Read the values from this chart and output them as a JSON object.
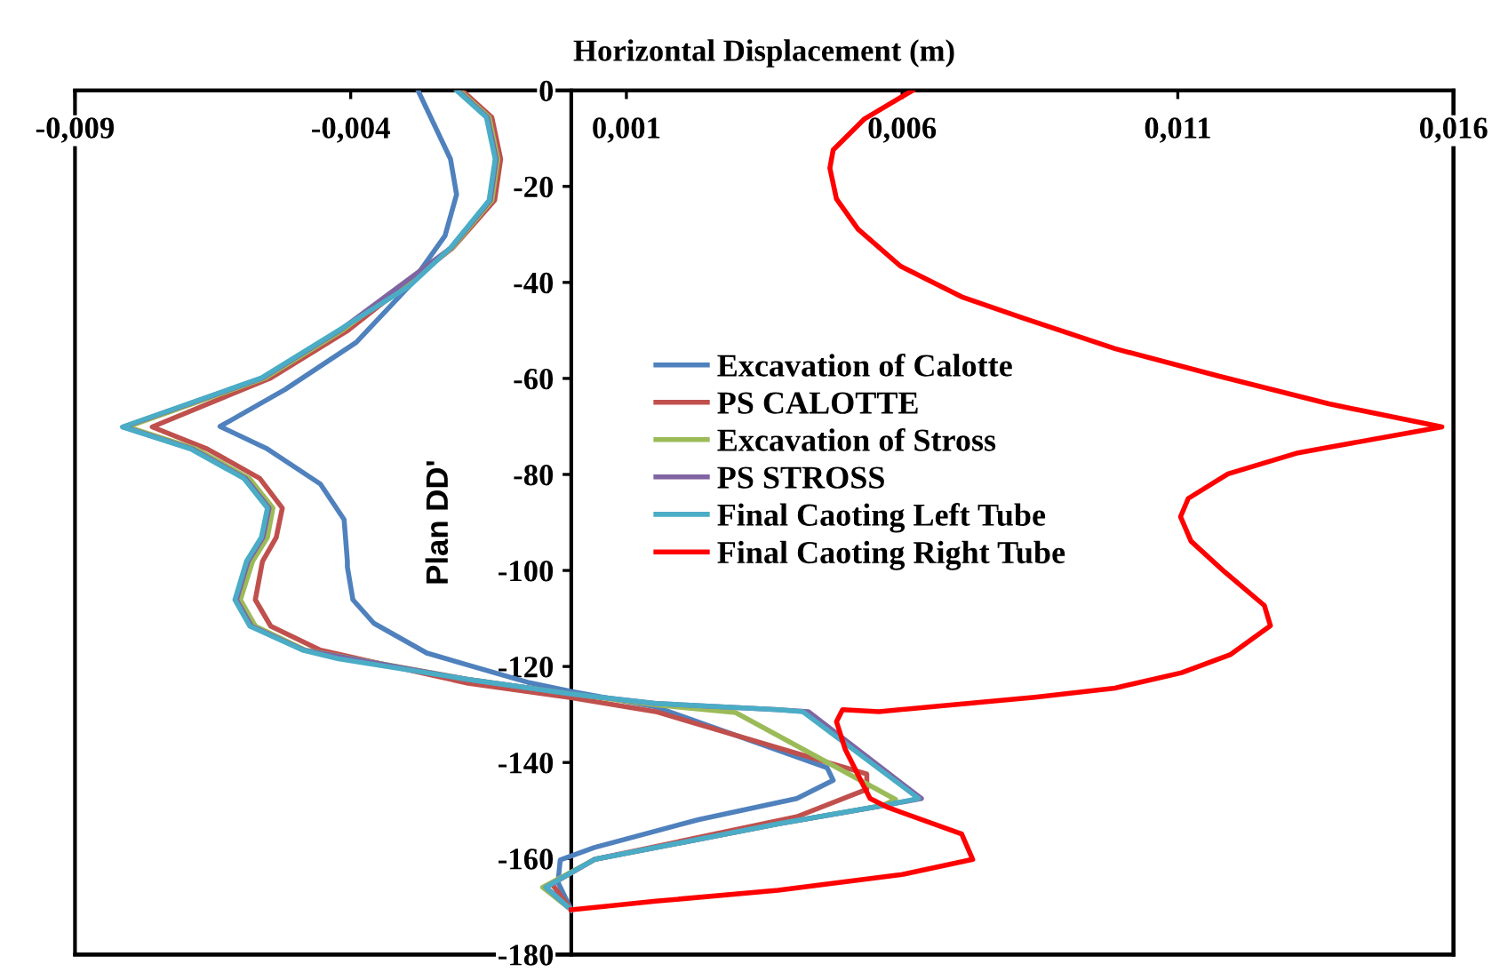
{
  "chart_data": {
    "type": "line",
    "xlabel": "Horizontal Displacement (m)",
    "ylabel": "Plan DD'",
    "xlim": [
      -0.009,
      0.016
    ],
    "xticks": [
      {
        "value": -0.009,
        "label": "-0,009"
      },
      {
        "value": -0.004,
        "label": "-0,004"
      },
      {
        "value": 0.001,
        "label": "0,001"
      },
      {
        "value": 0.006,
        "label": "0,006"
      },
      {
        "value": 0.011,
        "label": "0,011"
      },
      {
        "value": 0.016,
        "label": "0,016"
      }
    ],
    "ylim": [
      -180,
      0
    ],
    "yticks": [
      0,
      -20,
      -40,
      -60,
      -80,
      -100,
      -120,
      -140,
      -160,
      -180
    ],
    "grid": false,
    "legend": "center",
    "marker": "none",
    "line_style": "solid",
    "series": [
      {
        "name": "Excavation of Calotte",
        "color": "#4f81bd",
        "x": [
          -0.00278,
          -0.00219,
          -0.00208,
          -0.00229,
          -0.00294,
          -0.0039,
          -0.00519,
          -0.00637,
          -0.00551,
          -0.00455,
          -0.00412,
          -0.00406,
          -0.00406,
          -0.00396,
          -0.00358,
          -0.00262,
          -0.00079,
          0.0,
          0.00153,
          0.00464,
          0.00475,
          0.00409,
          0.00231,
          0.00042,
          -0.0002,
          -0.00024,
          0.0
        ],
        "values": [
          0,
          -14.3,
          -21.7,
          -30.3,
          -40.8,
          -52.5,
          -62.3,
          -70,
          -74.7,
          -82,
          -89.4,
          -98.1,
          -99.3,
          -106.1,
          -111,
          -117.2,
          -123.3,
          -125.2,
          -128.4,
          -141.1,
          -143.7,
          -147.5,
          -151.9,
          -157.7,
          -160.3,
          -165,
          -170.7
        ]
      },
      {
        "name": "PS CALOTTE",
        "color": "#c0504d",
        "x": [
          -0.00198,
          -0.00144,
          -0.00128,
          -0.00139,
          -0.00215,
          -0.00405,
          -0.00545,
          -0.0076,
          -0.0066,
          -0.00565,
          -0.00524,
          -0.00535,
          -0.0056,
          -0.00573,
          -0.00545,
          -0.00455,
          -0.00187,
          0.0,
          0.00153,
          0.00536,
          0.00536,
          0.00409,
          0.00042,
          -0.00035,
          0.0
        ],
        "values": [
          0,
          -5.6,
          -14.3,
          -22.9,
          -32.8,
          -50,
          -59.9,
          -70.1,
          -74.7,
          -80.8,
          -87,
          -93.1,
          -98.1,
          -106.1,
          -111.6,
          -116.6,
          -123.5,
          -126.5,
          -129.4,
          -142.4,
          -145.6,
          -151.3,
          -160.2,
          -165.3,
          -170.7
        ]
      },
      {
        "name": "Excavation of Stross",
        "color": "#9bbb59",
        "x": [
          -0.00203,
          -0.00149,
          -0.00133,
          -0.00144,
          -0.00216,
          -0.00415,
          -0.00555,
          -0.00805,
          -0.0068,
          -0.00584,
          -0.00541,
          -0.00551,
          -0.00578,
          -0.006,
          -0.00573,
          -0.00482,
          -0.00187,
          0.0,
          0.00153,
          0.00298,
          0.00588,
          0.00564,
          0.00375,
          0.00042,
          -0.00052,
          0.0
        ],
        "values": [
          0,
          -5.6,
          -14.3,
          -22.9,
          -32.8,
          -50,
          -59.9,
          -70.1,
          -74.7,
          -80.8,
          -87,
          -93.1,
          -98.1,
          -106.1,
          -111.6,
          -116.6,
          -122.7,
          -125.7,
          -128,
          -129.6,
          -147.7,
          -149,
          -152.8,
          -160.2,
          -166,
          -170.7
        ]
      },
      {
        "name": "PS STROSS",
        "color": "#8064a2",
        "x": [
          -0.00206,
          -0.00152,
          -0.00136,
          -0.00147,
          -0.00218,
          -0.0042,
          -0.0056,
          -0.00812,
          -0.00687,
          -0.00591,
          -0.00548,
          -0.00559,
          -0.00586,
          -0.00607,
          -0.0058,
          -0.00485,
          -0.00187,
          0.0,
          0.00153,
          0.00375,
          0.0043,
          0.00635,
          0.00566,
          0.00375,
          0.00042,
          -0.00046,
          0.0
        ],
        "values": [
          0,
          -5.6,
          -14.3,
          -22.9,
          -32.8,
          -50,
          -59.9,
          -70.1,
          -74.7,
          -80.8,
          -87,
          -93.1,
          -98.1,
          -106.1,
          -111.6,
          -116.6,
          -122.7,
          -125.7,
          -127.7,
          -129,
          -129.4,
          -147.5,
          -149,
          -152.8,
          -160.2,
          -166,
          -170.7
        ]
      },
      {
        "name": "Final Caoting Left Tube",
        "color": "#4bacc6",
        "x": [
          -0.00208,
          -0.00154,
          -0.00138,
          -0.00149,
          -0.00219,
          -0.00294,
          -0.00422,
          -0.00562,
          -0.00814,
          -0.0069,
          -0.00594,
          -0.00551,
          -0.00562,
          -0.00589,
          -0.0061,
          -0.00583,
          -0.00487,
          -0.00422,
          -0.00187,
          0.0,
          0.00153,
          0.00375,
          0.0042,
          0.0063,
          0.00564,
          0.00375,
          0.00042,
          -0.00046,
          0.0
        ],
        "values": [
          0,
          -5.6,
          -14.3,
          -22.9,
          -32.8,
          -40.8,
          -50,
          -59.9,
          -70.1,
          -74.7,
          -80.8,
          -87,
          -93.1,
          -98.1,
          -106.1,
          -111.6,
          -116.6,
          -118.4,
          -122.7,
          -125.7,
          -127.7,
          -129,
          -129.4,
          -147.5,
          -149,
          -152.8,
          -160.2,
          -166,
          -170.7
        ]
      },
      {
        "name": "Final Caoting Right Tube",
        "color": "#ff0000",
        "x": [
          0.00619,
          0.00531,
          0.00475,
          0.00469,
          0.00481,
          0.0052,
          0.00597,
          0.00708,
          0.00819,
          0.00986,
          0.01174,
          0.01374,
          0.01579,
          0.01318,
          0.01191,
          0.01119,
          0.01105,
          0.01124,
          0.01185,
          0.01257,
          0.01268,
          0.01196,
          0.01107,
          0.00986,
          0.00841,
          0.00653,
          0.00558,
          0.00492,
          0.00481,
          0.00497,
          0.00525,
          0.00542,
          0.00575,
          0.00708,
          0.00728,
          0.00597,
          0.00375,
          0.00153,
          0.0
        ],
        "values": [
          0,
          -6,
          -12.4,
          -16.2,
          -22.6,
          -28.9,
          -36.6,
          -43,
          -47.4,
          -53.8,
          -59.5,
          -65.3,
          -70.1,
          -75.5,
          -79.9,
          -85,
          -88.8,
          -93.9,
          -100.3,
          -107.3,
          -111.5,
          -117.5,
          -121.3,
          -124.5,
          -126.4,
          -128.4,
          -129.4,
          -129,
          -131.5,
          -137.3,
          -143.7,
          -147.5,
          -149.4,
          -154.9,
          -160.2,
          -163.4,
          -166.6,
          -168.9,
          -170.7
        ]
      }
    ]
  }
}
